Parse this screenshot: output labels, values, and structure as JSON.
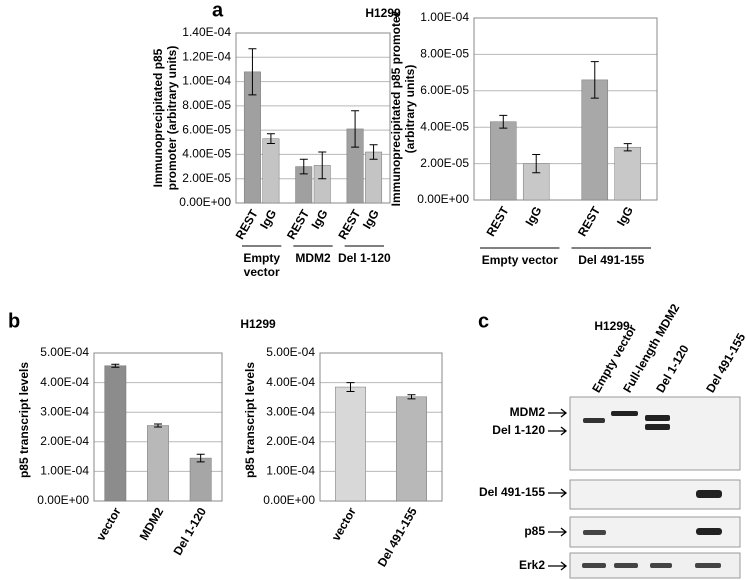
{
  "panel_labels": [
    "a",
    "b",
    "c"
  ],
  "chart_data": [
    {
      "type": "bar",
      "title": "H1299",
      "ylabel": "Immunoprecipitated p85 promoter (arbitrary units)",
      "categories": [
        "Empty vector",
        "MDM2",
        "Del 1-120"
      ],
      "series": [
        {
          "name": "REST",
          "color": "#a0a0a0",
          "values": [
            0.000108,
            3e-05,
            6.1e-05
          ],
          "errors": [
            1.9e-05,
            6e-06,
            1.5e-05
          ]
        },
        {
          "name": "IgG",
          "color": "#c4c4c4",
          "values": [
            5.3e-05,
            3.1e-05,
            4.2e-05
          ],
          "errors": [
            4e-06,
            1.1e-05,
            6e-06
          ]
        }
      ],
      "ylim": [
        0,
        0.00014
      ],
      "yticks": [
        {
          "value": 0,
          "label": "0.00E+00"
        },
        {
          "value": 2e-05,
          "label": "2.00E-05"
        },
        {
          "value": 4e-05,
          "label": "4.00E-05"
        },
        {
          "value": 6e-05,
          "label": "6.00E-05"
        },
        {
          "value": 8e-05,
          "label": "8.00E-05"
        },
        {
          "value": 0.0001,
          "label": "1.00E-04"
        },
        {
          "value": 0.00012,
          "label": "1.20E-04"
        },
        {
          "value": 0.00014,
          "label": "1.40E-04"
        }
      ],
      "grid": true
    },
    {
      "type": "bar",
      "ylabel": "Immunoprecipitated p85 promoter (arbitrary units)",
      "categories": [
        "Empty vector",
        "Del 491-155"
      ],
      "series": [
        {
          "name": "REST",
          "color": "#a8a8a8",
          "values": [
            4.3e-05,
            6.6e-05
          ],
          "errors": [
            3.5e-06,
            1e-05
          ]
        },
        {
          "name": "IgG",
          "color": "#c8c8c8",
          "values": [
            2e-05,
            2.9e-05
          ],
          "errors": [
            5e-06,
            2e-06
          ]
        }
      ],
      "ylim": [
        0,
        0.0001
      ],
      "yticks": [
        {
          "value": 0,
          "label": "0.00E+00"
        },
        {
          "value": 2e-05,
          "label": "2.00E-05"
        },
        {
          "value": 4e-05,
          "label": "4.00E-05"
        },
        {
          "value": 6e-05,
          "label": "6.00E-05"
        },
        {
          "value": 8e-05,
          "label": "8.00E-05"
        },
        {
          "value": 0.0001,
          "label": "1.00E-04"
        }
      ],
      "grid": true
    },
    {
      "type": "bar",
      "title": "H1299",
      "ylabel": "p85 transcript levels",
      "categories": [
        "vector",
        "MDM2",
        "Del 1-120"
      ],
      "values": [
        0.000457,
        0.000255,
        0.000145
      ],
      "errors": [
        5e-06,
        5e-06,
        1.3e-05
      ],
      "colors": [
        "#8c8c8c",
        "#b8b8b8",
        "#a6a6a6"
      ],
      "ylim": [
        0,
        0.0005
      ],
      "yticks": [
        {
          "value": 0,
          "label": "0.00E+00"
        },
        {
          "value": 0.0001,
          "label": "1.00E-04"
        },
        {
          "value": 0.0002,
          "label": "2.00E-04"
        },
        {
          "value": 0.0003,
          "label": "3.00E-04"
        },
        {
          "value": 0.0004,
          "label": "4.00E-04"
        },
        {
          "value": 0.0005,
          "label": "5.00E-04"
        }
      ],
      "grid": true
    },
    {
      "type": "bar",
      "ylabel": "p85 transcript levels",
      "categories": [
        "vector",
        "Del 491-155"
      ],
      "values": [
        0.000385,
        0.000352
      ],
      "errors": [
        1.5e-05,
        7e-06
      ],
      "colors": [
        "#d8d8d8",
        "#b8b8b8"
      ],
      "ylim": [
        0,
        0.0005
      ],
      "yticks": [
        {
          "value": 0,
          "label": "0.00E+00"
        },
        {
          "value": 0.0001,
          "label": "1.00E-04"
        },
        {
          "value": 0.0002,
          "label": "2.00E-04"
        },
        {
          "value": 0.0003,
          "label": "3.00E-04"
        },
        {
          "value": 0.0004,
          "label": "4.00E-04"
        },
        {
          "value": 0.0005,
          "label": "5.00E-04"
        }
      ],
      "grid": true
    }
  ],
  "blot": {
    "title": "H1299",
    "lanes": [
      "Empty vector",
      "Full-length MDM2",
      "Del 1-120",
      "Del 491-155"
    ],
    "rows": [
      {
        "labels": [
          "MDM2",
          "Del 1-120"
        ]
      },
      {
        "labels": [
          "Del 491-155"
        ]
      },
      {
        "labels": [
          "p85"
        ]
      },
      {
        "labels": [
          "Erk2"
        ]
      }
    ]
  }
}
